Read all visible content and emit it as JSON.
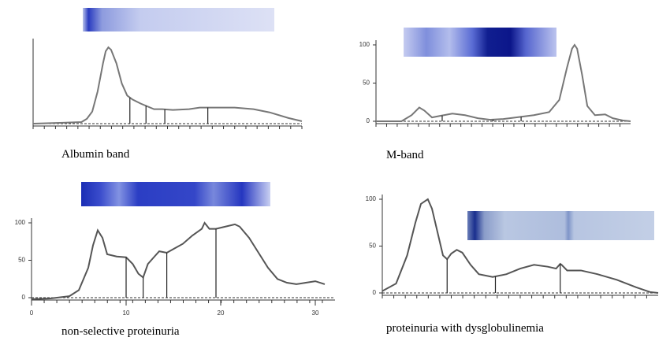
{
  "chart_data": [
    {
      "type": "line",
      "title": "Albumin band",
      "color": "#777777",
      "x": [
        0,
        10,
        18,
        20,
        22,
        24,
        26,
        27,
        28,
        29,
        31,
        33,
        35,
        37,
        40,
        45,
        48,
        52,
        58,
        62,
        68,
        75,
        82,
        88,
        95,
        100
      ],
      "values": [
        0,
        1,
        2,
        6,
        15,
        40,
        75,
        90,
        95,
        92,
        75,
        50,
        35,
        30,
        25,
        18,
        18,
        17,
        18,
        20,
        20,
        20,
        18,
        14,
        7,
        3
      ],
      "separators": [
        36,
        42,
        49,
        65
      ],
      "xlim": [
        0,
        100
      ],
      "ylim": [
        0,
        100
      ]
    },
    {
      "type": "line",
      "title": "M-band",
      "color": "#777777",
      "x": [
        0,
        10,
        14,
        17,
        19,
        22,
        25,
        30,
        35,
        40,
        45,
        50,
        55,
        62,
        68,
        72,
        75,
        77,
        78,
        79,
        81,
        83,
        86,
        90,
        93,
        97,
        100
      ],
      "values": [
        0,
        0,
        8,
        18,
        14,
        5,
        7,
        10,
        8,
        4,
        2,
        3,
        5,
        8,
        12,
        28,
        70,
        95,
        100,
        95,
        60,
        20,
        8,
        9,
        4,
        1,
        0
      ],
      "separators": [
        26,
        46,
        57
      ],
      "xlim": [
        0,
        100
      ],
      "ylim": [
        0,
        100
      ],
      "yticks": [
        0,
        50,
        100
      ]
    },
    {
      "type": "line",
      "title": "non-selective proteinuria",
      "color": "#555555",
      "x": [
        0,
        2,
        4,
        5,
        6,
        6.5,
        7,
        7.5,
        8,
        9,
        10,
        10.7,
        11.3,
        11.8,
        12.3,
        13,
        13.5,
        14.3,
        15,
        16,
        17,
        18,
        18.3,
        18.8,
        19.5,
        20.5,
        21.5,
        22,
        23,
        24,
        25,
        26,
        27,
        28,
        29,
        30,
        31
      ],
      "values": [
        -2,
        -1,
        2,
        10,
        40,
        70,
        90,
        80,
        58,
        55,
        54,
        45,
        32,
        27,
        45,
        55,
        62,
        60,
        65,
        72,
        83,
        92,
        100,
        92,
        92,
        95,
        98,
        95,
        80,
        60,
        40,
        25,
        20,
        18,
        20,
        22,
        18
      ],
      "separators": [
        10,
        11.8,
        14.3,
        19.5
      ],
      "xlim": [
        0,
        31
      ],
      "ylim": [
        0,
        100
      ],
      "yticks": [
        0,
        50,
        100
      ],
      "xticks": [
        0,
        10,
        20,
        30
      ]
    },
    {
      "type": "line",
      "title": "proteinuria with dysglobulinemia",
      "color": "#555555",
      "x": [
        0,
        5,
        9,
        12,
        14,
        16.5,
        18,
        20,
        22,
        23.5,
        25,
        27,
        29,
        32,
        35,
        40,
        45,
        50,
        55,
        60,
        63,
        64.5,
        65,
        67,
        72,
        78,
        85,
        92,
        97,
        100
      ],
      "values": [
        2,
        10,
        40,
        75,
        95,
        100,
        90,
        65,
        40,
        36,
        42,
        46,
        43,
        30,
        20,
        17,
        20,
        26,
        30,
        28,
        26,
        31,
        30,
        24,
        24,
        20,
        14,
        6,
        1,
        0
      ],
      "separators": [
        23.5,
        41,
        64.5
      ],
      "xlim": [
        0,
        100
      ],
      "ylim": [
        0,
        100
      ],
      "yticks": [
        0,
        50,
        100
      ]
    }
  ]
}
